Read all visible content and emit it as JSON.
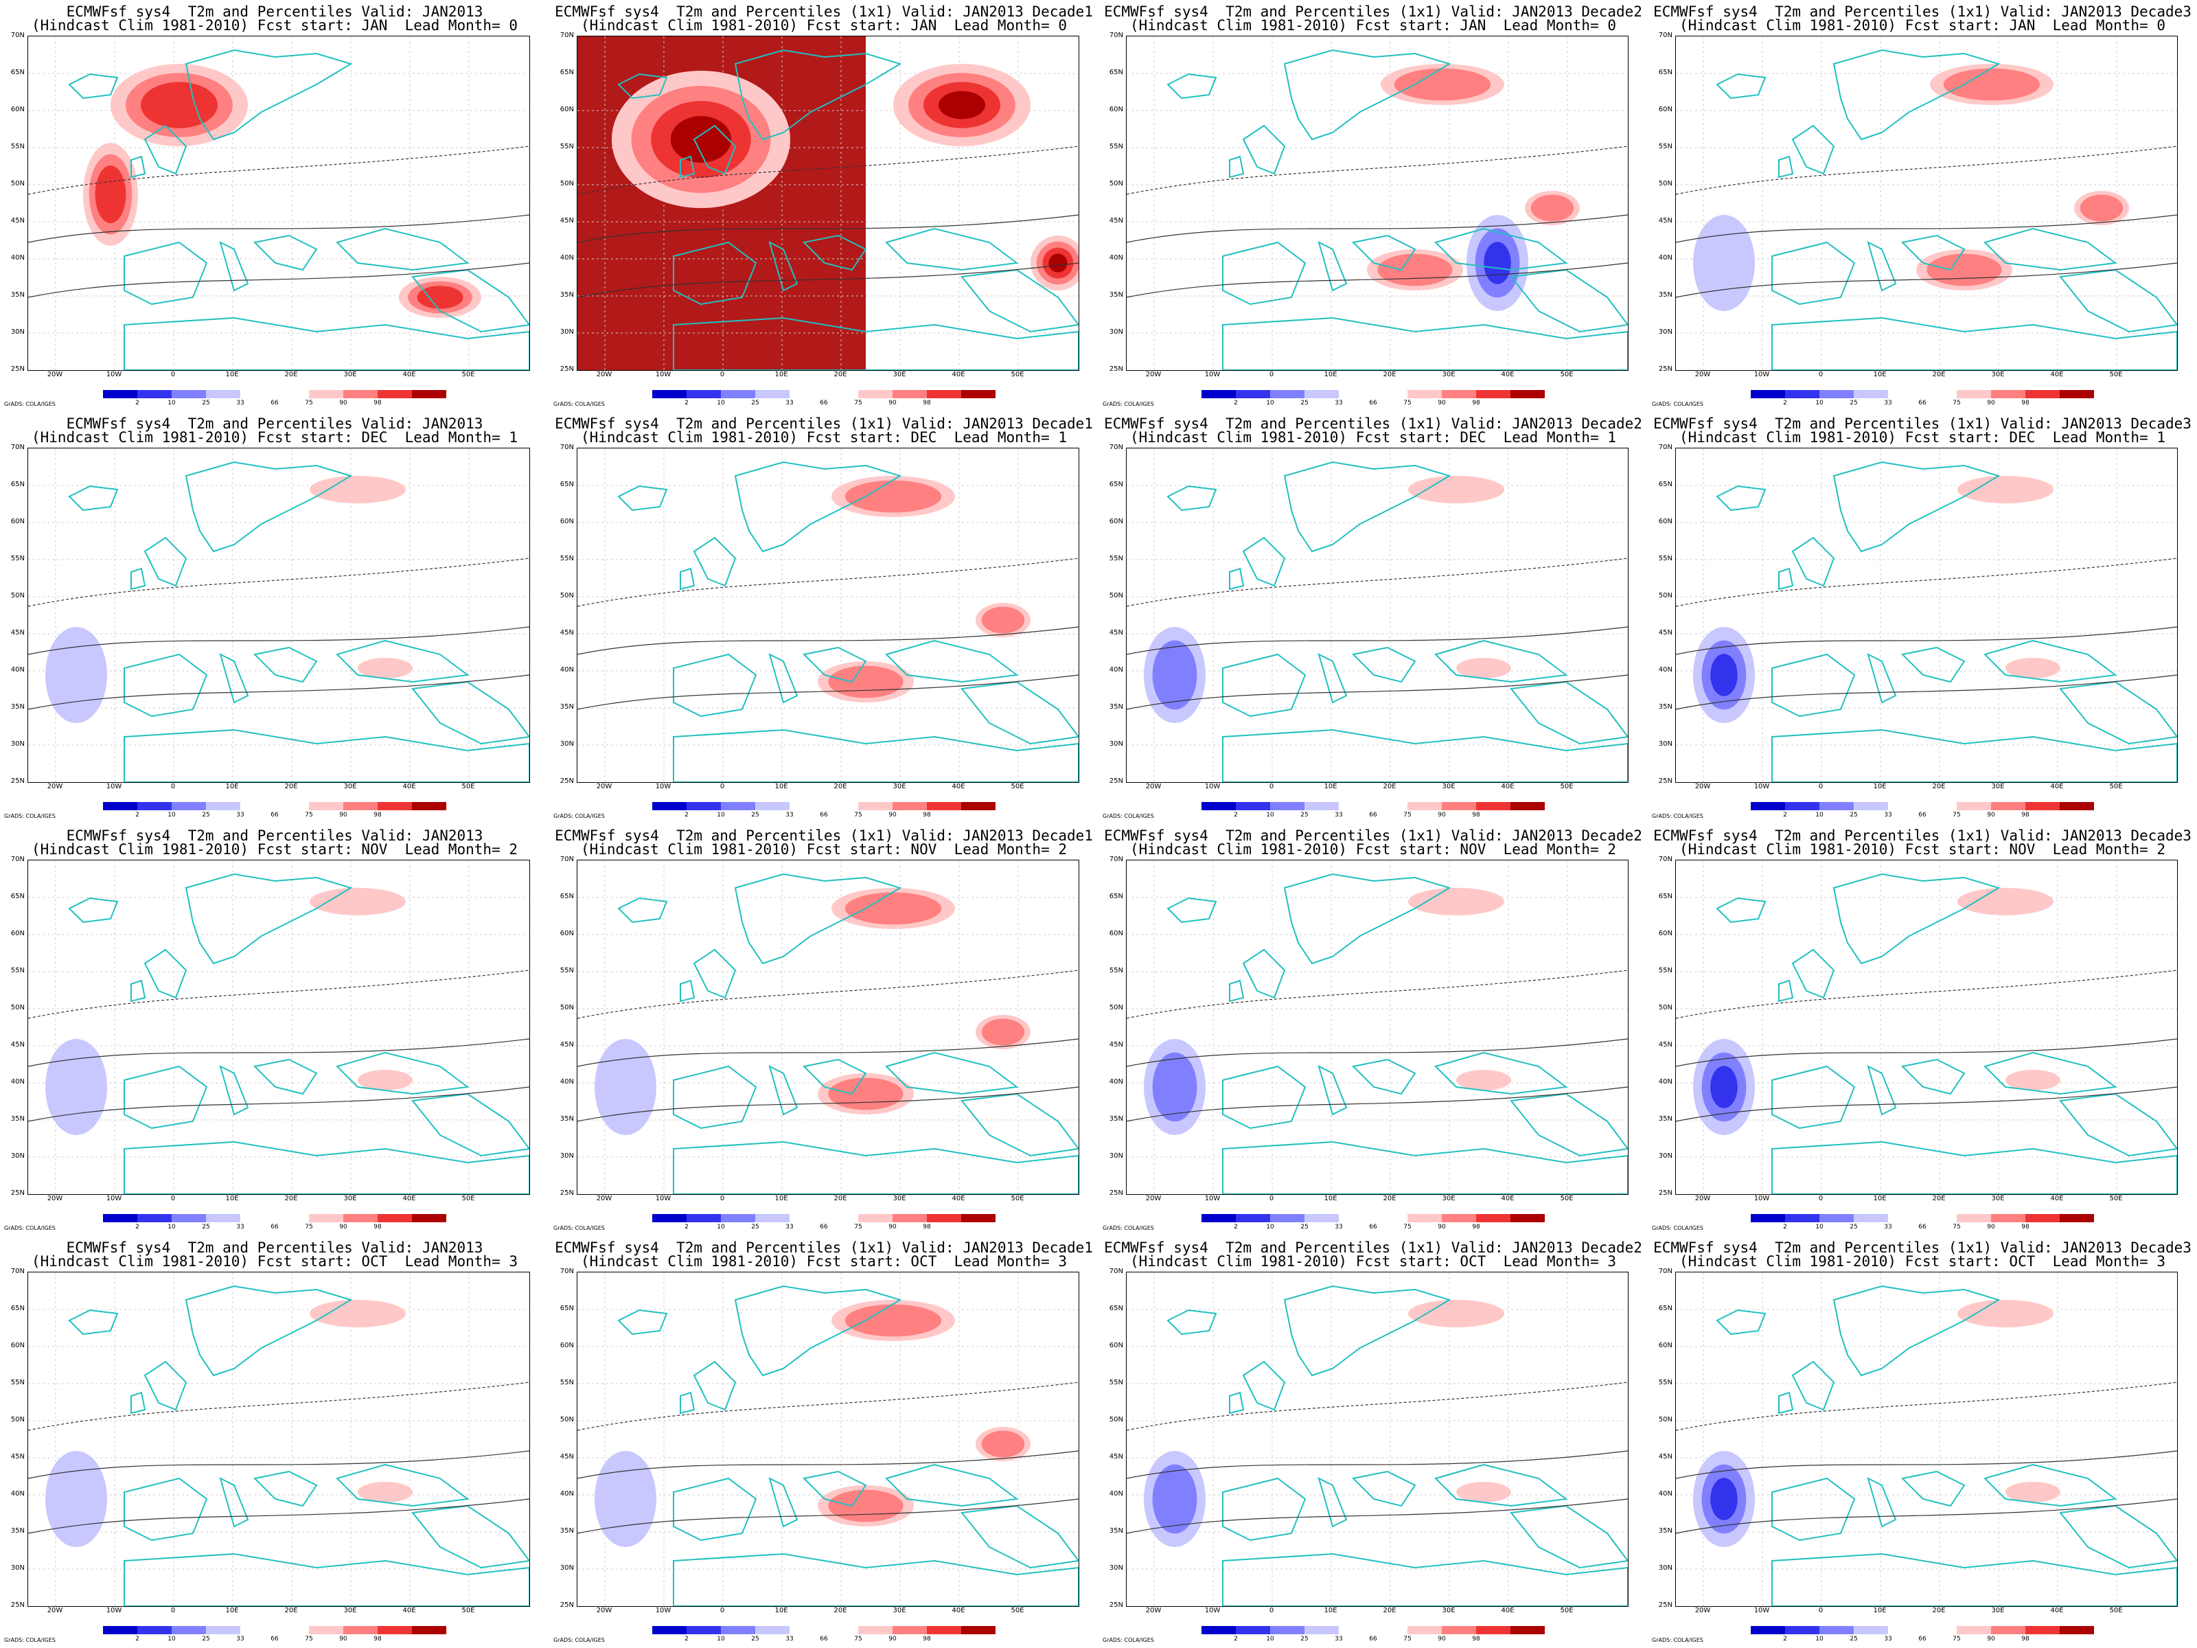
{
  "map_common": {
    "lat_labels": [
      "70N",
      "65N",
      "60N",
      "55N",
      "50N",
      "45N",
      "40N",
      "35N",
      "30N",
      "25N"
    ],
    "lon_labels": [
      "20W",
      "10W",
      "0",
      "10E",
      "20E",
      "30E",
      "40E",
      "50E"
    ],
    "colorbar_ticks": [
      "2",
      "10",
      "25",
      "33",
      "66",
      "75",
      "90",
      "98"
    ],
    "colorbar_colors": [
      "#0000cc",
      "#3333ee",
      "#8080ff",
      "#c8c8ff",
      "#ffffff",
      "#ffffff",
      "#ffc8c8",
      "#ff8080",
      "#ee3333",
      "#aa0000"
    ],
    "credit": "GrADS: COLA/IGES"
  },
  "panels": [
    {
      "title1": "ECMWFsf sys4  T2m and Percentiles Valid: JAN2013",
      "title2": "(Hindcast Clim 1981-2010) Fcst start: JAN  Lead Month= 0",
      "warm_level": 3,
      "cold_level": 0
    },
    {
      "title1": "ECMWFsf sys4  T2m and Percentiles (1x1) Valid: JAN2013 Decade1",
      "title2": "(Hindcast Clim 1981-2010) Fcst start: JAN  Lead Month= 0",
      "warm_level": 4,
      "cold_level": 0
    },
    {
      "title1": "ECMWFsf sys4  T2m and Percentiles (1x1) Valid: JAN2013 Decade2",
      "title2": "(Hindcast Clim 1981-2010) Fcst start: JAN  Lead Month= 0",
      "warm_level": 2,
      "cold_level": 3
    },
    {
      "title1": "ECMWFsf sys4  T2m and Percentiles (1x1) Valid: JAN2013 Decade3",
      "title2": "(Hindcast Clim 1981-2010) Fcst start: JAN  Lead Month= 0",
      "warm_level": 2,
      "cold_level": 1
    },
    {
      "title1": "ECMWFsf sys4  T2m and Percentiles Valid: JAN2013",
      "title2": "(Hindcast Clim 1981-2010) Fcst start: DEC  Lead Month= 1",
      "warm_level": 1,
      "cold_level": 1
    },
    {
      "title1": "ECMWFsf sys4  T2m and Percentiles (1x1) Valid: JAN2013 Decade1",
      "title2": "(Hindcast Clim 1981-2010) Fcst start: DEC  Lead Month= 1",
      "warm_level": 2,
      "cold_level": 0
    },
    {
      "title1": "ECMWFsf sys4  T2m and Percentiles (1x1) Valid: JAN2013 Decade2",
      "title2": "(Hindcast Clim 1981-2010) Fcst start: DEC  Lead Month= 1",
      "warm_level": 1,
      "cold_level": 2
    },
    {
      "title1": "ECMWFsf sys4  T2m and Percentiles (1x1) Valid: JAN2013 Decade3",
      "title2": "(Hindcast Clim 1981-2010) Fcst start: DEC  Lead Month= 1",
      "warm_level": 1,
      "cold_level": 3
    },
    {
      "title1": "ECMWFsf sys4  T2m and Percentiles Valid: JAN2013",
      "title2": "(Hindcast Clim 1981-2010) Fcst start: NOV  Lead Month= 2",
      "warm_level": 1,
      "cold_level": 1
    },
    {
      "title1": "ECMWFsf sys4  T2m and Percentiles (1x1) Valid: JAN2013 Decade1",
      "title2": "(Hindcast Clim 1981-2010) Fcst start: NOV  Lead Month= 2",
      "warm_level": 2,
      "cold_level": 1
    },
    {
      "title1": "ECMWFsf sys4  T2m and Percentiles (1x1) Valid: JAN2013 Decade2",
      "title2": "(Hindcast Clim 1981-2010) Fcst start: NOV  Lead Month= 2",
      "warm_level": 1,
      "cold_level": 2
    },
    {
      "title1": "ECMWFsf sys4  T2m and Percentiles (1x1) Valid: JAN2013 Decade3",
      "title2": "(Hindcast Clim 1981-2010) Fcst start: NOV  Lead Month= 2",
      "warm_level": 1,
      "cold_level": 3
    },
    {
      "title1": "ECMWFsf sys4  T2m and Percentiles Valid: JAN2013",
      "title2": "(Hindcast Clim 1981-2010) Fcst start: OCT  Lead Month= 3",
      "warm_level": 1,
      "cold_level": 1
    },
    {
      "title1": "ECMWFsf sys4  T2m and Percentiles (1x1) Valid: JAN2013 Decade1",
      "title2": "(Hindcast Clim 1981-2010) Fcst start: OCT  Lead Month= 3",
      "warm_level": 2,
      "cold_level": 1
    },
    {
      "title1": "ECMWFsf sys4  T2m and Percentiles (1x1) Valid: JAN2013 Decade2",
      "title2": "(Hindcast Clim 1981-2010) Fcst start: OCT  Lead Month= 3",
      "warm_level": 1,
      "cold_level": 2
    },
    {
      "title1": "ECMWFsf sys4  T2m and Percentiles (1x1) Valid: JAN2013 Decade3",
      "title2": "(Hindcast Clim 1981-2010) Fcst start: OCT  Lead Month= 3",
      "warm_level": 1,
      "cold_level": 3
    }
  ]
}
